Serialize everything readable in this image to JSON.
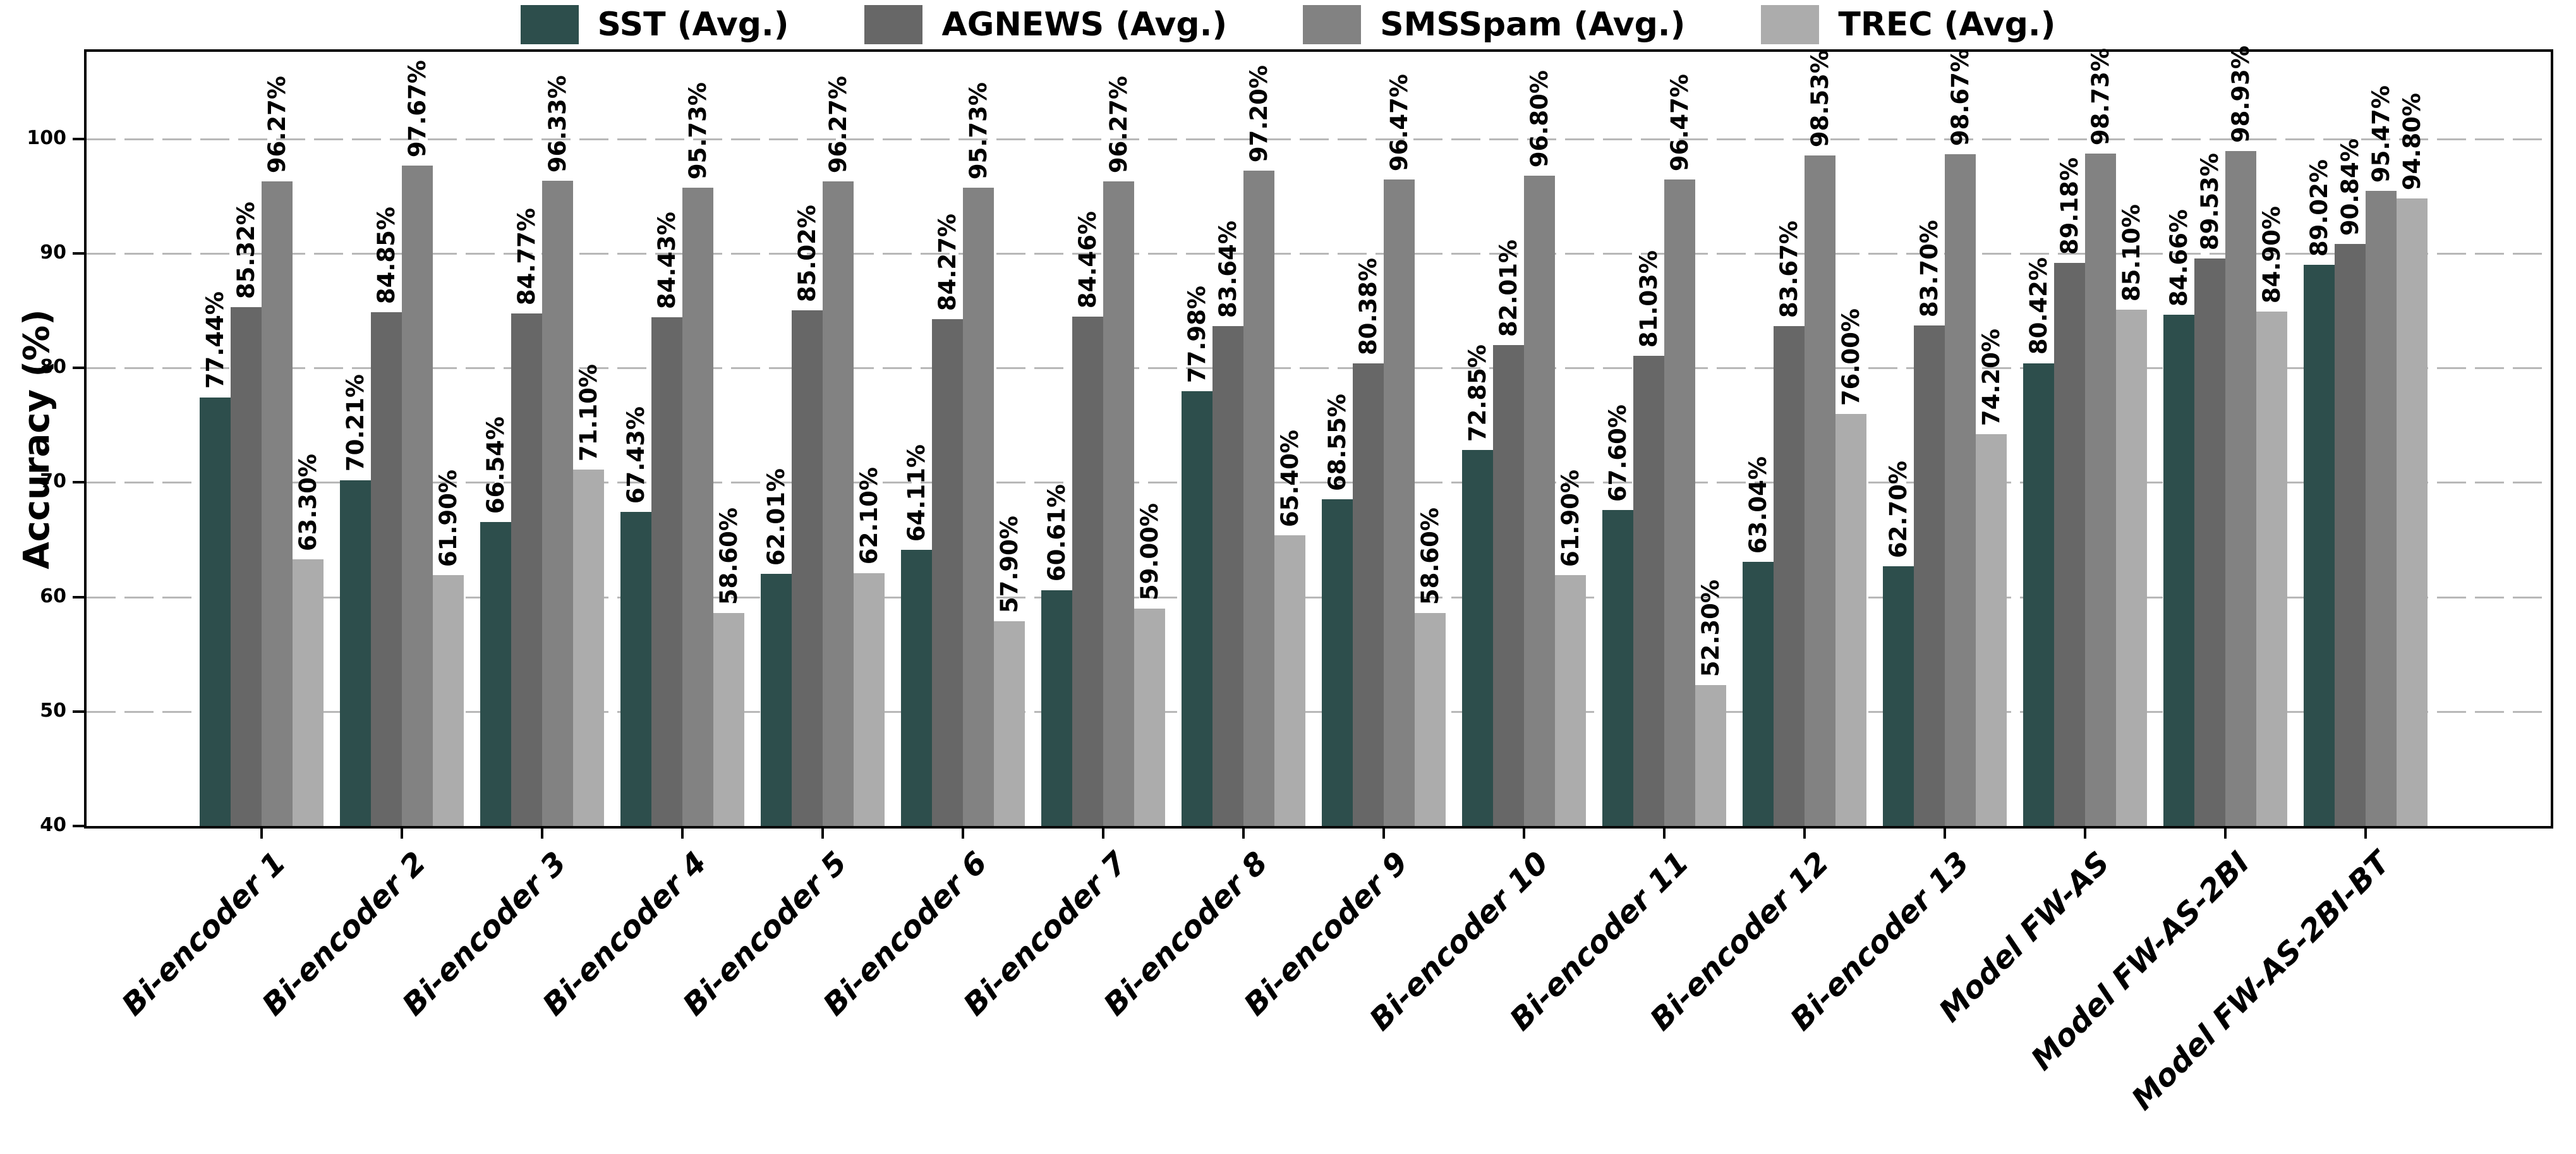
{
  "chart_data": {
    "type": "bar",
    "title": "",
    "xlabel": "",
    "ylabel": "Accuracy (%)",
    "ylim": [
      40,
      107.6
    ],
    "yticks": [
      40,
      50,
      60,
      70,
      80,
      90,
      100
    ],
    "grid": true,
    "legend_position": "top-center",
    "categories": [
      "Bi-encoder 1",
      "Bi-encoder 2",
      "Bi-encoder 3",
      "Bi-encoder 4",
      "Bi-encoder 5",
      "Bi-encoder 6",
      "Bi-encoder 7",
      "Bi-encoder 8",
      "Bi-encoder 9",
      "Bi-encoder 10",
      "Bi-encoder 11",
      "Bi-encoder 12",
      "Bi-encoder 13",
      "Model FW-AS",
      "Model FW-AS-2BI",
      "Model FW-AS-2BI-BT"
    ],
    "series": [
      {
        "name": "SST (Avg.)",
        "color": "#2d4e4c",
        "values": [
          77.44,
          70.21,
          66.54,
          67.43,
          62.01,
          64.11,
          60.61,
          77.98,
          68.55,
          72.85,
          67.6,
          63.04,
          62.7,
          80.42,
          84.66,
          89.02
        ],
        "labels": [
          "77.44%",
          "70.21%",
          "66.54%",
          "67.43%",
          "62.01%",
          "64.11%",
          "60.61%",
          "77.98%",
          "68.55%",
          "72.85%",
          "67.60%",
          "63.04%",
          "62.70%",
          "80.42%",
          "84.66%",
          "89.02%"
        ]
      },
      {
        "name": "AGNEWS (Avg.)",
        "color": "#676767",
        "values": [
          85.32,
          84.85,
          84.77,
          84.43,
          85.02,
          84.27,
          84.46,
          83.64,
          80.38,
          82.01,
          81.03,
          83.67,
          83.7,
          89.18,
          89.53,
          90.84
        ],
        "labels": [
          "85.32%",
          "84.85%",
          "84.77%",
          "84.43%",
          "85.02%",
          "84.27%",
          "84.46%",
          "83.64%",
          "80.38%",
          "82.01%",
          "81.03%",
          "83.67%",
          "83.70%",
          "89.18%",
          "89.53%",
          "90.84%"
        ]
      },
      {
        "name": "SMSSpam (Avg.)",
        "color": "#828282",
        "values": [
          96.27,
          97.67,
          96.33,
          95.73,
          96.27,
          95.73,
          96.27,
          97.2,
          96.47,
          96.8,
          96.47,
          98.53,
          98.67,
          98.73,
          98.93,
          95.47
        ],
        "labels": [
          "96.27%",
          "97.67%",
          "96.33%",
          "95.73%",
          "96.27%",
          "95.73%",
          "96.27%",
          "97.20%",
          "96.47%",
          "96.80%",
          "96.47%",
          "98.53%",
          "98.67%",
          "98.73%",
          "98.93%",
          "95.47%"
        ]
      },
      {
        "name": "TREC (Avg.)",
        "color": "#acacac",
        "values": [
          63.3,
          61.9,
          71.1,
          58.6,
          62.1,
          57.9,
          59.0,
          65.4,
          58.6,
          61.9,
          52.3,
          76.0,
          74.2,
          85.1,
          84.9,
          94.8
        ],
        "labels": [
          "63.30%",
          "61.90%",
          "71.10%",
          "58.60%",
          "62.10%",
          "57.90%",
          "59.00%",
          "65.40%",
          "58.60%",
          "61.90%",
          "52.30%",
          "76.00%",
          "74.20%",
          "85.10%",
          "84.90%",
          "94.80%"
        ]
      }
    ]
  }
}
